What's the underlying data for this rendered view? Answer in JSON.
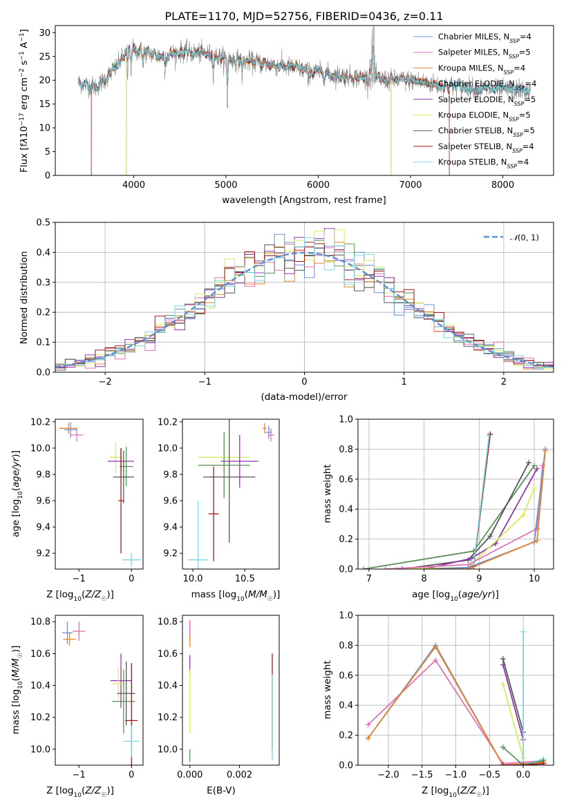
{
  "figure_title": "PLATE=1170, MJD=52756, FIBERID=0436, z=0.11",
  "colors": {
    "Chabrier MILES": "#6a8fd8",
    "Salpeter MILES": "#e56fb3",
    "Kroupa MILES": "#e7852f",
    "Chabrier ELODIE": "#5a8f5a",
    "Salpeter ELODIE": "#8e34a6",
    "Kroupa ELODIE": "#d9ec5c",
    "Chabrier STELIB": "#555555",
    "Salpeter STELIB": "#a01818",
    "Kroupa STELIB": "#7fd5df",
    "data": "#808080"
  },
  "legend_spectrum": [
    {
      "prefix": "Chabrier MILES, N",
      "sub": "SSP",
      "suffix": "=4"
    },
    {
      "prefix": "Salpeter MILES, N",
      "sub": "SSP",
      "suffix": "=5"
    },
    {
      "prefix": "Kroupa MILES, N",
      "sub": "SSP",
      "suffix": "=4"
    },
    {
      "prefix": "Chabrier ELODIE, N",
      "sub": "SSP",
      "suffix": "=4"
    },
    {
      "prefix": "Salpeter ELODIE, N",
      "sub": "SSP",
      "suffix": "=5"
    },
    {
      "prefix": "Kroupa ELODIE, N",
      "sub": "SSP",
      "suffix": "=5"
    },
    {
      "prefix": "Chabrier STELIB, N",
      "sub": "SSP",
      "suffix": "=5"
    },
    {
      "prefix": "Salpeter STELIB, N",
      "sub": "SSP",
      "suffix": "=4"
    },
    {
      "prefix": "Kroupa STELIB, N",
      "sub": "SSP",
      "suffix": "=4"
    }
  ],
  "chart_data": [
    {
      "id": "spectrum",
      "type": "line",
      "xlabel": "wavelength [Angstrom, rest frame]",
      "ylabel": "Flux [fλ10⁻¹⁷ erg cm⁻² s⁻¹ A⁻¹]",
      "xlim": [
        3150,
        8550
      ],
      "ylim": [
        0,
        31.5
      ],
      "xticks": [
        4000,
        5000,
        6000,
        7000,
        8000
      ],
      "yticks": [
        0,
        5,
        10,
        15,
        20,
        25,
        30
      ],
      "grid": false,
      "legend_position": "top-right",
      "continuum": {
        "x": [
          3400,
          3600,
          3800,
          3950,
          4100,
          4300,
          4500,
          4800,
          5000,
          5300,
          5600,
          5900,
          6200,
          6500,
          6800,
          7000,
          7300,
          7600,
          7900,
          8200,
          8300
        ],
        "y": [
          19.5,
          18.5,
          22.5,
          26.5,
          26.0,
          25.0,
          26.0,
          25.5,
          24.5,
          23.8,
          23.0,
          22.0,
          21.0,
          20.5,
          20.0,
          20.0,
          19.0,
          18.5,
          18.0,
          18.0,
          17.5
        ]
      },
      "model_cutoffs": {
        "Kroupa MILES": [
          3540,
          7420
        ],
        "Salpeter STELIB": [
          3540,
          7420
        ],
        "Kroupa ELODIE": [
          3920,
          6790
        ],
        "Salpeter ELODIE": [
          3920,
          6790
        ]
      }
    },
    {
      "id": "residuals",
      "type": "step",
      "xlabel": "(data-model)/error",
      "ylabel": "Normed distribution",
      "xlim": [
        -2.5,
        2.5
      ],
      "ylim": [
        0,
        0.5
      ],
      "xticks": [
        -2,
        -1,
        0,
        1,
        2
      ],
      "yticks": [
        0.0,
        0.1,
        0.2,
        0.3,
        0.4,
        0.5
      ],
      "grid": true,
      "legend_position": "top-right",
      "legend": "N(0,1)",
      "bin_width": 0.1,
      "bin_range": [
        -2.5,
        2.5
      ]
    },
    {
      "id": "age_vs_Z",
      "type": "errorbar",
      "xlabel": "Z [log10(Z/Z☉)]",
      "ylabel": "age [log10(age/yr)]",
      "xlim": [
        -1.45,
        0.22
      ],
      "ylim": [
        9.08,
        10.22
      ],
      "xticks": [
        -1,
        0
      ],
      "yticks": [
        9.2,
        9.4,
        9.6,
        9.8,
        10.0,
        10.2
      ],
      "points": [
        {
          "model": "Kroupa MILES",
          "x": -1.2,
          "y": 10.15,
          "xerr": 0.17,
          "yerr": 0.04
        },
        {
          "model": "Chabrier MILES",
          "x": -1.16,
          "y": 10.14,
          "xerr": 0.12,
          "yerr": 0.06
        },
        {
          "model": "Salpeter MILES",
          "x": -1.04,
          "y": 10.1,
          "xerr": 0.12,
          "yerr": 0.05
        },
        {
          "model": "Kroupa ELODIE",
          "x": -0.3,
          "y": 9.93,
          "xerr": 0.12,
          "yerr": 0.12
        },
        {
          "model": "Salpeter ELODIE",
          "x": -0.2,
          "y": 9.9,
          "xerr": 0.25,
          "yerr": 0.1
        },
        {
          "model": "Chabrier ELODIE",
          "x": -0.1,
          "y": 9.86,
          "xerr": 0.13,
          "yerr": 0.15
        },
        {
          "model": "Chabrier STELIB",
          "x": -0.15,
          "y": 9.78,
          "xerr": 0.2,
          "yerr": 0.2
        },
        {
          "model": "Salpeter STELIB",
          "x": -0.2,
          "y": 9.6,
          "xerr": 0.05,
          "yerr": 0.4
        },
        {
          "model": "Kroupa STELIB",
          "x": 0.0,
          "y": 9.15,
          "xerr": 0.18,
          "yerr": 0.05
        }
      ]
    },
    {
      "id": "age_vs_mass",
      "type": "errorbar",
      "xlabel": "mass [log10(M/M☉)]",
      "ylabel": "",
      "xlim": [
        9.9,
        10.83
      ],
      "ylim": [
        9.08,
        10.22
      ],
      "xticks": [
        10.0,
        10.5
      ],
      "yticks": [
        9.2,
        9.4,
        9.6,
        9.8,
        10.0,
        10.2
      ],
      "points": [
        {
          "model": "Kroupa MILES",
          "x": 10.69,
          "y": 10.15,
          "xerr": 0.02,
          "yerr": 0.04
        },
        {
          "model": "Chabrier MILES",
          "x": 10.73,
          "y": 10.12,
          "xerr": 0.03,
          "yerr": 0.05
        },
        {
          "model": "Salpeter MILES",
          "x": 10.75,
          "y": 10.1,
          "xerr": 0.03,
          "yerr": 0.05
        },
        {
          "model": "Kroupa ELODIE",
          "x": 10.3,
          "y": 9.93,
          "xerr": 0.25,
          "yerr": 0.12
        },
        {
          "model": "Salpeter ELODIE",
          "x": 10.45,
          "y": 9.9,
          "xerr": 0.18,
          "yerr": 0.2
        },
        {
          "model": "Chabrier ELODIE",
          "x": 10.3,
          "y": 9.87,
          "xerr": 0.25,
          "yerr": 0.25
        },
        {
          "model": "Chabrier STELIB",
          "x": 10.35,
          "y": 9.78,
          "xerr": 0.25,
          "yerr": 0.5
        },
        {
          "model": "Salpeter STELIB",
          "x": 10.2,
          "y": 9.5,
          "xerr": 0.05,
          "yerr": 0.36
        },
        {
          "model": "Kroupa STELIB",
          "x": 10.05,
          "y": 9.15,
          "xerr": 0.1,
          "yerr": 0.45
        }
      ]
    },
    {
      "id": "weight_vs_age",
      "type": "line",
      "xlabel": "age [log10(age/yr)]",
      "ylabel": "mass weight",
      "xlim": [
        6.8,
        10.35
      ],
      "ylim": [
        0,
        1.0
      ],
      "xticks": [
        7,
        8,
        9,
        10
      ],
      "yticks": [
        0.0,
        0.2,
        0.4,
        0.6,
        0.8,
        1.0
      ],
      "grid": true,
      "series": [
        {
          "model": "Chabrier ELODIE",
          "x": [
            6.9,
            8.9,
            10.0
          ],
          "y": [
            0.0,
            0.12,
            0.69
          ]
        },
        {
          "model": "Chabrier STELIB",
          "x": [
            7.6,
            8.8,
            9.2,
            9.9
          ],
          "y": [
            0.0,
            0.06,
            0.22,
            0.71
          ]
        },
        {
          "model": "Salpeter ELODIE",
          "x": [
            8.0,
            8.85,
            9.3,
            10.05
          ],
          "y": [
            0.0,
            0.07,
            0.17,
            0.67
          ]
        },
        {
          "model": "Kroupa ELODIE",
          "x": [
            7.5,
            8.8,
            9.8,
            10.0
          ],
          "y": [
            0.0,
            0.01,
            0.36,
            0.54
          ]
        },
        {
          "model": "Salpeter MILES",
          "x": [
            7.3,
            8.8,
            10.05,
            10.15
          ],
          "y": [
            0.0,
            0.03,
            0.27,
            0.69
          ]
        },
        {
          "model": "Chabrier MILES",
          "x": [
            8.0,
            8.8,
            10.0,
            10.2
          ],
          "y": [
            0.0,
            0.01,
            0.18,
            0.8
          ]
        },
        {
          "model": "Kroupa MILES",
          "x": [
            8.0,
            8.8,
            10.05,
            10.2
          ],
          "y": [
            0.0,
            0.0,
            0.19,
            0.79
          ]
        },
        {
          "model": "Salpeter STELIB",
          "x": [
            8.9,
            9.2
          ],
          "y": [
            0.02,
            0.9
          ]
        },
        {
          "model": "Kroupa STELIB",
          "x": [
            8.9,
            9.18
          ],
          "y": [
            0.03,
            0.89
          ]
        }
      ]
    },
    {
      "id": "mass_vs_Z",
      "type": "errorbar",
      "xlabel": "Z [log10(Z/Z☉)]",
      "ylabel": "mass [log10(M/M☉)]",
      "xlim": [
        -1.45,
        0.22
      ],
      "ylim": [
        9.9,
        10.84
      ],
      "xticks": [
        -1,
        0
      ],
      "yticks": [
        10.0,
        10.2,
        10.4,
        10.6,
        10.8
      ],
      "points": [
        {
          "model": "Chabrier MILES",
          "x": -1.22,
          "y": 10.73,
          "xerr": 0.1,
          "yerr": 0.07
        },
        {
          "model": "Kroupa MILES",
          "x": -1.18,
          "y": 10.69,
          "xerr": 0.12,
          "yerr": 0.04
        },
        {
          "model": "Salpeter MILES",
          "x": -1.0,
          "y": 10.74,
          "xerr": 0.12,
          "yerr": 0.06
        },
        {
          "model": "Salpeter ELODIE",
          "x": -0.2,
          "y": 10.43,
          "xerr": 0.2,
          "yerr": 0.17
        },
        {
          "model": "Kroupa ELODIE",
          "x": -0.25,
          "y": 10.41,
          "xerr": 0.12,
          "yerr": 0.1
        },
        {
          "model": "Chabrier STELIB",
          "x": -0.1,
          "y": 10.35,
          "xerr": 0.17,
          "yerr": 0.2
        },
        {
          "model": "Chabrier ELODIE",
          "x": -0.15,
          "y": 10.3,
          "xerr": 0.22,
          "yerr": 0.2
        },
        {
          "model": "Salpeter STELIB",
          "x": 0.0,
          "y": 10.18,
          "xerr": 0.12,
          "yerr": 0.36
        },
        {
          "model": "Kroupa STELIB",
          "x": 0.0,
          "y": 10.05,
          "xerr": 0.15,
          "yerr": 0.1
        }
      ]
    },
    {
      "id": "mass_vs_ebv",
      "type": "errorbar",
      "xlabel": "E(B-V)",
      "ylabel": "",
      "xlim": [
        -0.0003,
        0.0036
      ],
      "ylim": [
        9.9,
        10.84
      ],
      "xticks": [
        0.0,
        0.002
      ],
      "xticklabels": [
        "0.000",
        "0.002"
      ],
      "yticks": [
        10.0,
        10.2,
        10.4,
        10.6,
        10.8
      ],
      "points": [
        {
          "model": "Chabrier MILES",
          "x": 0.0,
          "y": 10.75,
          "yerr": 0.05
        },
        {
          "model": "Salpeter MILES",
          "x": 0.0,
          "y": 10.75,
          "yerr": 0.06
        },
        {
          "model": "Kroupa MILES",
          "x": 0.0,
          "y": 10.68,
          "yerr": 0.04
        },
        {
          "model": "Salpeter ELODIE",
          "x": 0.0,
          "y": 10.53,
          "yerr": 0.06
        },
        {
          "model": "Kroupa ELODIE",
          "x": 0.0,
          "y": 10.3,
          "yerr": 0.2
        },
        {
          "model": "Chabrier ELODIE",
          "x": 0.0,
          "y": 9.96,
          "yerr": 0.04
        },
        {
          "model": "Salpeter STELIB",
          "x": 0.00332,
          "y": 10.5,
          "yerr": 0.1
        },
        {
          "model": "Chabrier STELIB",
          "x": 0.00332,
          "y": 10.2,
          "yerr": 0.2
        },
        {
          "model": "Kroupa STELIB",
          "x": 0.00332,
          "y": 10.2,
          "yerr": 0.27
        }
      ]
    },
    {
      "id": "weight_vs_Z",
      "type": "line",
      "xlabel": "Z [log10(Z/Z☉)]",
      "ylabel": "mass weight",
      "xlim": [
        -2.45,
        0.45
      ],
      "ylim": [
        0,
        1.0
      ],
      "xticks": [
        -2.0,
        -1.5,
        -1.0,
        -0.5,
        0.0
      ],
      "yticks": [
        0.0,
        0.2,
        0.4,
        0.6,
        0.8,
        1.0
      ],
      "grid": true,
      "series": [
        {
          "model": "Salpeter MILES",
          "x": [
            -2.3,
            -1.3,
            -0.3,
            0.3
          ],
          "y": [
            0.27,
            0.7,
            0.01,
            0.03
          ]
        },
        {
          "model": "Chabrier MILES",
          "x": [
            -2.3,
            -1.3,
            -0.3,
            0.3
          ],
          "y": [
            0.18,
            0.8,
            0.0,
            0.02
          ]
        },
        {
          "model": "Kroupa MILES",
          "x": [
            -2.3,
            -1.3,
            -0.3,
            0.3
          ],
          "y": [
            0.18,
            0.79,
            0.0,
            0.02
          ]
        },
        {
          "model": "Chabrier STELIB",
          "x": [
            -0.3,
            0.0
          ],
          "y": [
            0.71,
            0.22
          ]
        },
        {
          "model": "Salpeter ELODIE",
          "x": [
            -0.3,
            0.0
          ],
          "y": [
            0.67,
            0.17
          ]
        },
        {
          "model": "Kroupa ELODIE",
          "x": [
            -0.3,
            0.0
          ],
          "y": [
            0.54,
            0.05
          ]
        },
        {
          "model": "Kroupa STELIB",
          "x": [
            0.0,
            0.0,
            0.3
          ],
          "y": [
            0.89,
            0.0,
            0.04
          ]
        },
        {
          "model": "Chabrier ELODIE",
          "x": [
            -0.3,
            0.0,
            0.3
          ],
          "y": [
            0.12,
            0.0,
            0.03
          ]
        },
        {
          "model": "Salpeter STELIB",
          "x": [
            -0.3,
            0.0,
            0.3
          ],
          "y": [
            0.0,
            0.0,
            0.01
          ]
        }
      ]
    }
  ]
}
